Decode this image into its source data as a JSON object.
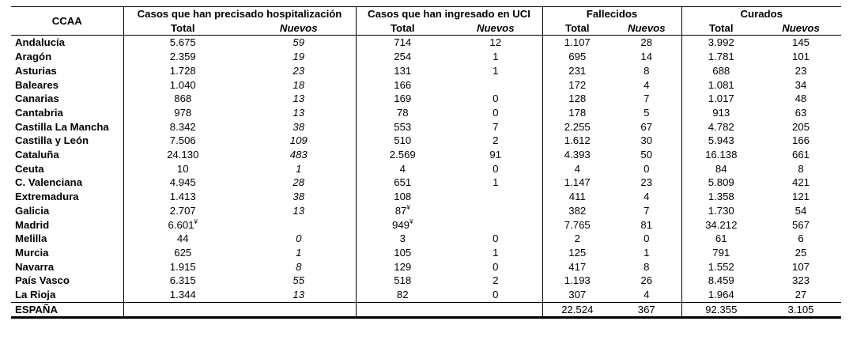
{
  "headers": {
    "ccaa": "CCAA",
    "groups": [
      "Casos que han precisado hospitalización",
      "Casos que han ingresado en UCI",
      "Fallecidos",
      "Curados"
    ],
    "total": "Total",
    "nuevos": "Nuevos"
  },
  "rows": [
    [
      "Andalucía",
      "5.675",
      "59",
      "714",
      "12",
      "1.107",
      "28",
      "3.992",
      "145"
    ],
    [
      "Aragón",
      "2.359",
      "19",
      "254",
      "1",
      "695",
      "14",
      "1.781",
      "101"
    ],
    [
      "Asturias",
      "1.728",
      "23",
      "131",
      "1",
      "231",
      "8",
      "688",
      "23"
    ],
    [
      "Baleares",
      "1.040",
      "18",
      "166",
      "",
      "172",
      "4",
      "1.081",
      "34"
    ],
    [
      "Canarias",
      "868",
      "13",
      "169",
      "0",
      "128",
      "7",
      "1.017",
      "48"
    ],
    [
      "Cantabria",
      "978",
      "13",
      "78",
      "0",
      "178",
      "5",
      "913",
      "63"
    ],
    [
      "Castilla La Mancha",
      "8.342",
      "38",
      "553",
      "7",
      "2.255",
      "67",
      "4.782",
      "205"
    ],
    [
      "Castilla y León",
      "7.506",
      "109",
      "510",
      "2",
      "1.612",
      "30",
      "5.943",
      "166"
    ],
    [
      "Cataluña",
      "24.130",
      "483",
      "2.569",
      "91",
      "4.393",
      "50",
      "16.138",
      "661"
    ],
    [
      "Ceuta",
      "10",
      "1",
      "4",
      "0",
      "4",
      "0",
      "84",
      "8"
    ],
    [
      "C. Valenciana",
      "4.945",
      "28",
      "651",
      "1",
      "1.147",
      "23",
      "5.809",
      "421"
    ],
    [
      "Extremadura",
      "1.413",
      "38",
      "108",
      "",
      "411",
      "4",
      "1.358",
      "121"
    ],
    [
      "Galicia",
      "2.707",
      "13",
      "87",
      "",
      "382",
      "7",
      "1.730",
      "54"
    ],
    [
      "Madrid",
      "6.601",
      "",
      "949",
      "",
      "7.765",
      "81",
      "34.212",
      "567"
    ],
    [
      "Melilla",
      "44",
      "0",
      "3",
      "0",
      "2",
      "0",
      "61",
      "6"
    ],
    [
      "Murcia",
      "625",
      "1",
      "105",
      "1",
      "125",
      "1",
      "791",
      "25"
    ],
    [
      "Navarra",
      "1.915",
      "8",
      "129",
      "0",
      "417",
      "8",
      "1.552",
      "107"
    ],
    [
      "País Vasco",
      "6.315",
      "55",
      "518",
      "2",
      "1.193",
      "26",
      "8.459",
      "323"
    ],
    [
      "La Rioja",
      "1.344",
      "13",
      "82",
      "0",
      "307",
      "4",
      "1.964",
      "27"
    ]
  ],
  "footnote_mark": "¥",
  "footnotes": {
    "galicia_uci": "¥",
    "madrid_hosp": "¥",
    "madrid_uci": "¥"
  },
  "total_row": [
    "ESPAÑA",
    "",
    "",
    "",
    "",
    "22.524",
    "367",
    "92.355",
    "3.105"
  ]
}
